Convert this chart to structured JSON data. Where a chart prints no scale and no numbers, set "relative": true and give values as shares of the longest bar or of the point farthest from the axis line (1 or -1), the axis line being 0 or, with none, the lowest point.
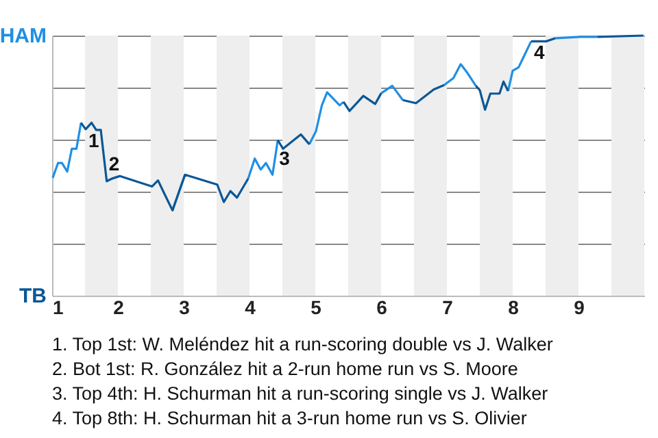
{
  "chart_data": {
    "type": "line",
    "relative": true,
    "x": [
      1.01,
      1.09,
      1.15,
      1.23,
      1.3,
      1.37,
      1.44,
      1.51,
      1.6,
      1.67,
      1.74,
      1.83,
      1.91,
      2.03,
      2.52,
      2.61,
      2.71,
      2.83,
      3.02,
      3.51,
      3.61,
      3.71,
      3.81,
      3.98,
      4.08,
      4.17,
      4.25,
      4.35,
      4.43,
      4.51,
      4.78,
      4.91,
      5.01,
      5.1,
      5.18,
      5.37,
      5.43,
      5.52,
      5.64,
      5.73,
      5.91,
      6.0,
      6.17,
      6.33,
      6.53,
      6.8,
      6.96,
      7.1,
      7.21,
      7.31,
      7.44,
      7.5,
      7.58,
      7.66,
      7.8,
      7.86,
      7.93,
      8.0,
      8.09,
      8.28,
      8.51,
      8.65,
      9.02,
      9.29,
      9.99
    ],
    "series": [
      {
        "name": "HAM",
        "color": "#1f8fe5",
        "values": [
          0.453,
          0.51,
          0.51,
          0.477,
          0.565,
          0.565,
          0.665,
          null,
          null,
          null,
          null,
          null,
          0.45,
          0.46,
          null,
          null,
          null,
          0.328,
          0.465,
          null,
          null,
          null,
          null,
          0.45,
          0.527,
          0.485,
          0.51,
          0.465,
          0.598,
          null,
          null,
          0.582,
          0.632,
          0.732,
          0.782,
          0.732,
          0.745,
          null,
          null,
          null,
          null,
          0.778,
          0.807,
          0.752,
          null,
          null,
          0.81,
          0.837,
          0.89,
          0.857,
          0.807,
          null,
          null,
          null,
          null,
          null,
          0.787,
          0.865,
          0.878,
          0.978,
          null,
          0.99,
          0.995,
          0.995,
          null
        ]
      },
      {
        "name": "TB",
        "color": "#0b5796",
        "values": [
          null,
          null,
          null,
          null,
          null,
          null,
          0.665,
          0.64,
          0.665,
          0.637,
          0.637,
          0.44,
          0.45,
          0.46,
          0.42,
          0.443,
          0.39,
          0.328,
          0.465,
          0.427,
          0.36,
          0.402,
          0.377,
          0.45,
          null,
          null,
          null,
          null,
          0.598,
          0.565,
          0.62,
          0.582,
          null,
          null,
          null,
          null,
          0.745,
          0.71,
          0.743,
          0.768,
          0.737,
          0.778,
          null,
          0.752,
          0.74,
          0.793,
          0.81,
          null,
          null,
          null,
          0.807,
          0.79,
          0.715,
          0.777,
          0.777,
          0.823,
          0.787,
          null,
          null,
          0.978,
          0.978,
          0.99,
          null,
          0.995,
          1
        ]
      }
    ],
    "xlim": [
      1,
      10
    ],
    "xticks": [
      1,
      2,
      3,
      4,
      5,
      6,
      7,
      8,
      9
    ],
    "grid": "y",
    "bands": [
      {
        "axis": "x",
        "from": 1.5,
        "to": 2,
        "label": null,
        "color": "#eeeeee"
      },
      {
        "axis": "x",
        "from": 2.5,
        "to": 3,
        "label": null,
        "color": "#eeeeee"
      },
      {
        "axis": "x",
        "from": 3.5,
        "to": 4,
        "label": null,
        "color": "#eeeeee"
      },
      {
        "axis": "x",
        "from": 4.5,
        "to": 5,
        "label": null,
        "color": "#eeeeee"
      },
      {
        "axis": "x",
        "from": 5.5,
        "to": 6,
        "label": null,
        "color": "#eeeeee"
      },
      {
        "axis": "x",
        "from": 6.5,
        "to": 7,
        "label": null,
        "color": "#eeeeee"
      },
      {
        "axis": "x",
        "from": 7.5,
        "to": 8,
        "label": null,
        "color": "#eeeeee"
      },
      {
        "axis": "x",
        "from": 8.5,
        "to": 9,
        "label": null,
        "color": "#eeeeee"
      },
      {
        "axis": "x",
        "from": 9.5,
        "to": 10,
        "label": null,
        "color": "#eeeeee"
      }
    ],
    "annotations": [
      {
        "text": "1",
        "x": 1.51,
        "y": 0.64
      },
      {
        "text": "2",
        "x": 1.82,
        "y": 0.55
      },
      {
        "text": "3",
        "x": 4.41,
        "y": 0.57
      },
      {
        "text": "4",
        "x": 8.28,
        "y": 0.978
      },
      "1. Top 1st: W. Meléndez hit a run-scoring double vs J. Walker",
      "2. Bot 1st: R. González hit a 2-run home run vs S. Moore",
      "3. Top 4th: H. Schurman hit a run-scoring single vs J. Walker",
      "4. Top 8th: H. Schurman hit a 3-run home run vs S. Olivier"
    ]
  }
}
